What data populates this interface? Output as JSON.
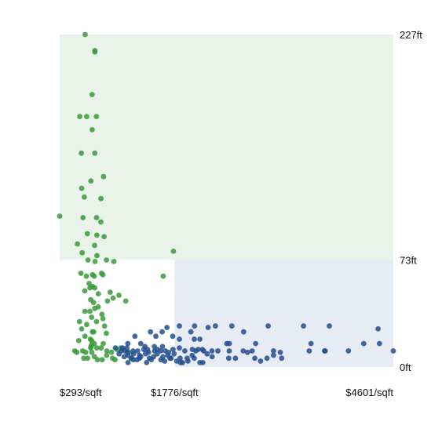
{
  "chart_data": {
    "type": "scatter",
    "title": "",
    "xlabel": "",
    "ylabel": "",
    "xlim": [
      293,
      4601
    ],
    "ylim": [
      0,
      227
    ],
    "x_ticks": [
      {
        "value": 293,
        "label": "$293/sqft"
      },
      {
        "value": 1776,
        "label": "$1776/sqft"
      },
      {
        "value": 4601,
        "label": "$4601/sqft"
      }
    ],
    "y_ticks": [
      {
        "value": 227,
        "label": "227ft"
      },
      {
        "value": 73,
        "label": "73ft"
      },
      {
        "value": 0,
        "label": "0ft"
      }
    ],
    "regions": [
      {
        "x0": 293,
        "x1": 4601,
        "y0": 73,
        "y1": 227,
        "color": "#e9f3e9"
      },
      {
        "x0": 1776,
        "x1": 4601,
        "y0": 0,
        "y1": 73,
        "color": "#e7ecf4"
      }
    ],
    "series": [
      {
        "color": "#3a9a3a",
        "points": [
          [
            622,
            227
          ],
          [
            748,
            216
          ],
          [
            748,
            215
          ],
          [
            712,
            186
          ],
          [
            553,
            171
          ],
          [
            767,
            171
          ],
          [
            642,
            171
          ],
          [
            713,
            162
          ],
          [
            573,
            146
          ],
          [
            747,
            146
          ],
          [
            860,
            130
          ],
          [
            696,
            127
          ],
          [
            577,
            122
          ],
          [
            611,
            116
          ],
          [
            826,
            115
          ],
          [
            594,
            102
          ],
          [
            769,
            102
          ],
          [
            825,
            99
          ],
          [
            293,
            103
          ],
          [
            650,
            91
          ],
          [
            773,
            90
          ],
          [
            744,
            83
          ],
          [
            522,
            84
          ],
          [
            867,
            89
          ],
          [
            584,
            78
          ],
          [
            1762,
            79
          ],
          [
            750,
            72
          ],
          [
            659,
            73
          ],
          [
            774,
            76
          ],
          [
            993,
            72
          ],
          [
            897,
            73
          ],
          [
            717,
            63
          ],
          [
            834,
            64
          ],
          [
            850,
            63
          ],
          [
            568,
            64
          ],
          [
            739,
            62
          ],
          [
            1630,
            62
          ],
          [
            638,
            62
          ],
          [
            718,
            55
          ],
          [
            684,
            54
          ],
          [
            746,
            54
          ],
          [
            946,
            51
          ],
          [
            793,
            50
          ],
          [
            673,
            57
          ],
          [
            618,
            52
          ],
          [
            910,
            45
          ],
          [
            694,
            46
          ],
          [
            982,
            47
          ],
          [
            1146,
            45
          ],
          [
            619,
            38
          ],
          [
            731,
            44
          ],
          [
            1058,
            49
          ],
          [
            683,
            38
          ],
          [
            746,
            40
          ],
          [
            791,
            41
          ],
          [
            838,
            36
          ],
          [
            706,
            34
          ],
          [
            549,
            31
          ],
          [
            642,
            29
          ],
          [
            768,
            31
          ],
          [
            853,
            33
          ],
          [
            716,
            24
          ],
          [
            577,
            26
          ],
          [
            733,
            24
          ],
          [
            873,
            28
          ],
          [
            896,
            23
          ],
          [
            689,
            19
          ],
          [
            539,
            18
          ],
          [
            620,
            21
          ],
          [
            707,
            18
          ],
          [
            741,
            16
          ],
          [
            856,
            16
          ],
          [
            488,
            11
          ],
          [
            590,
            11
          ],
          [
            697,
            14
          ],
          [
            771,
            13
          ],
          [
            828,
            13
          ],
          [
            706,
            15
          ],
          [
            1033,
            12
          ],
          [
            515,
            10
          ],
          [
            630,
            10
          ],
          [
            709,
            10
          ],
          [
            902,
            11
          ],
          [
            962,
            10
          ],
          [
            742,
            7
          ],
          [
            842,
            5
          ],
          [
            976,
            6
          ],
          [
            781,
            5
          ],
          [
            1008,
            5
          ],
          [
            604,
            6
          ],
          [
            899,
            8
          ],
          [
            654,
            6
          ],
          [
            693,
            13
          ],
          [
            1213,
            6
          ],
          [
            1083,
            13
          ],
          [
            1186,
            10
          ]
        ]
      },
      {
        "color": "#234f8f",
        "points": [
          [
            1839,
            28
          ],
          [
            2034,
            28
          ],
          [
            2304,
            28
          ],
          [
            1987,
            24
          ],
          [
            2210,
            27
          ],
          [
            1679,
            27
          ],
          [
            2669,
            24
          ],
          [
            1466,
            24
          ],
          [
            1616,
            24
          ],
          [
            2516,
            28
          ],
          [
            2985,
            28
          ],
          [
            3441,
            28
          ],
          [
            3775,
            28
          ],
          [
            4404,
            26
          ],
          [
            1264,
            21
          ],
          [
            1535,
            21
          ],
          [
            1753,
            21
          ],
          [
            1840,
            19
          ],
          [
            2031,
            19
          ],
          [
            2103,
            19
          ],
          [
            2451,
            16
          ],
          [
            2483,
            16
          ],
          [
            2823,
            16
          ],
          [
            4219,
            16
          ],
          [
            4423,
            16
          ],
          [
            3539,
            16
          ],
          [
            1173,
            16
          ],
          [
            1339,
            16
          ],
          [
            1394,
            14
          ],
          [
            1515,
            14
          ],
          [
            1620,
            14
          ],
          [
            1757,
            12
          ],
          [
            1839,
            13
          ],
          [
            1909,
            11
          ],
          [
            2006,
            12
          ],
          [
            2082,
            12
          ],
          [
            2136,
            12
          ],
          [
            2259,
            11
          ],
          [
            2336,
            11
          ],
          [
            2482,
            11
          ],
          [
            2663,
            11
          ],
          [
            2778,
            11
          ],
          [
            3054,
            11
          ],
          [
            3141,
            10
          ],
          [
            3515,
            11
          ],
          [
            3722,
            11
          ],
          [
            3713,
            11
          ],
          [
            4021,
            11
          ],
          [
            4601,
            11
          ],
          [
            1013,
            13
          ],
          [
            1089,
            11
          ],
          [
            1162,
            13
          ],
          [
            1242,
            11
          ],
          [
            1301,
            11
          ],
          [
            1380,
            12
          ],
          [
            1427,
            12
          ],
          [
            1518,
            11
          ],
          [
            1598,
            11
          ],
          [
            1699,
            10
          ],
          [
            2050,
            11
          ],
          [
            1219,
            6
          ],
          [
            1324,
            6
          ],
          [
            1451,
            6
          ],
          [
            1552,
            9
          ],
          [
            1689,
            8
          ],
          [
            1848,
            6
          ],
          [
            1938,
            6
          ],
          [
            2003,
            8
          ],
          [
            2475,
            6
          ],
          [
            2813,
            6
          ],
          [
            1176,
            3
          ],
          [
            1415,
            3
          ],
          [
            1648,
            4
          ],
          [
            2141,
            3
          ],
          [
            1133,
            11
          ],
          [
            1247,
            9
          ],
          [
            1106,
            13
          ],
          [
            1324,
            8
          ],
          [
            1402,
            9
          ],
          [
            1506,
            7
          ],
          [
            1626,
            7
          ],
          [
            1732,
            6
          ],
          [
            1803,
            4
          ],
          [
            1949,
            4
          ],
          [
            2103,
            3
          ],
          [
            2197,
            9
          ],
          [
            2262,
            7
          ],
          [
            2563,
            6
          ],
          [
            2719,
            10
          ],
          [
            2887,
            4
          ],
          [
            2970,
            6
          ],
          [
            3054,
            8
          ],
          [
            3160,
            6
          ],
          [
            1175,
            8
          ],
          [
            1059,
            9
          ],
          [
            1126,
            7
          ],
          [
            1168,
            10
          ],
          [
            1245,
            5
          ],
          [
            1292,
            5
          ],
          [
            1340,
            7
          ],
          [
            1441,
            10
          ],
          [
            1477,
            5
          ],
          [
            1556,
            12
          ],
          [
            1601,
            5
          ],
          [
            1657,
            11
          ],
          [
            1717,
            6
          ],
          [
            1770,
            9
          ],
          [
            1854,
            3
          ],
          [
            1880,
            3
          ],
          [
            2030,
            6
          ],
          [
            2153,
            11
          ]
        ]
      }
    ]
  }
}
